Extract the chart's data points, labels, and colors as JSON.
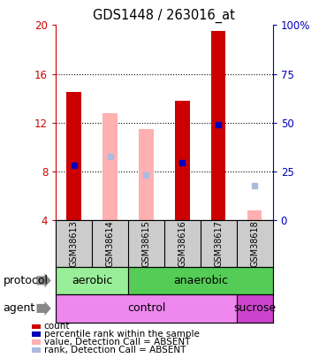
{
  "title": "GDS1448 / 263016_at",
  "samples": [
    "GSM38613",
    "GSM38614",
    "GSM38615",
    "GSM38616",
    "GSM38617",
    "GSM38618"
  ],
  "ylim_left": [
    4,
    20
  ],
  "ylim_right": [
    0,
    100
  ],
  "yticks_left": [
    4,
    8,
    12,
    16,
    20
  ],
  "yticks_right": [
    0,
    25,
    50,
    75,
    100
  ],
  "bar_width": 0.4,
  "red_bars": {
    "present": [
      0,
      3,
      4
    ],
    "bottoms": [
      4,
      4,
      4
    ],
    "tops": [
      14.5,
      13.8,
      19.5
    ]
  },
  "pink_bars": {
    "absent": [
      1,
      2,
      5
    ],
    "bottoms": [
      4,
      4,
      4
    ],
    "tops": [
      12.8,
      11.5,
      4.8
    ]
  },
  "blue_dots": {
    "samples": [
      0,
      3,
      4
    ],
    "values": [
      8.5,
      8.7,
      11.8
    ]
  },
  "light_blue_dots": {
    "samples": [
      1,
      2,
      5
    ],
    "values": [
      9.2,
      7.7,
      6.8
    ]
  },
  "protocol_spans": [
    {
      "label": "aerobic",
      "start": 0,
      "end": 2,
      "color": "#99EE99"
    },
    {
      "label": "anaerobic",
      "start": 2,
      "end": 6,
      "color": "#55CC55"
    }
  ],
  "agent_spans": [
    {
      "label": "control",
      "start": 0,
      "end": 5,
      "color": "#EE88EE"
    },
    {
      "label": "sucrose",
      "start": 5,
      "end": 6,
      "color": "#CC44CC"
    }
  ],
  "red_color": "#CC0000",
  "pink_color": "#FFB0B0",
  "blue_color": "#0000BB",
  "light_blue_color": "#AABBDD",
  "bg_color": "#FFFFFF",
  "plot_bg": "#FFFFFF",
  "left_axis_color": "#CC0000",
  "right_axis_color": "#0000BB",
  "sample_box_color": "#CCCCCC",
  "legend_items": [
    {
      "label": "count",
      "color": "#CC0000"
    },
    {
      "label": "percentile rank within the sample",
      "color": "#0000BB"
    },
    {
      "label": "value, Detection Call = ABSENT",
      "color": "#FFB0B0"
    },
    {
      "label": "rank, Detection Call = ABSENT",
      "color": "#AABBDD"
    }
  ],
  "arrow_color": "#888888"
}
